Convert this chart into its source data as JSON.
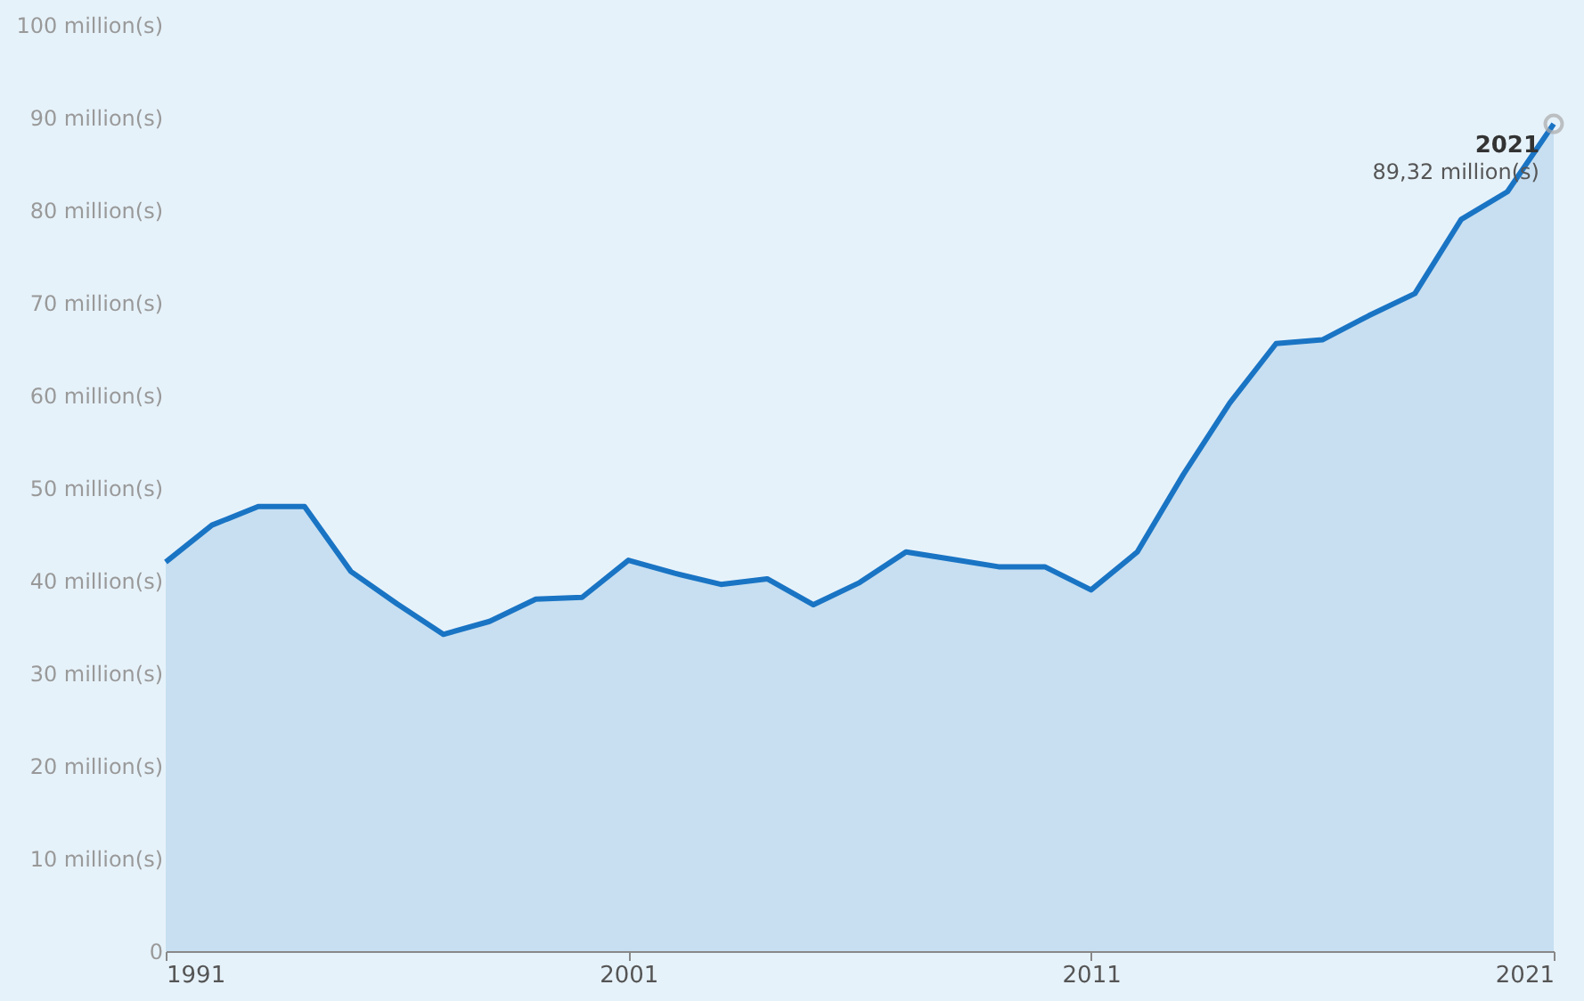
{
  "chart_data": {
    "type": "area",
    "x": [
      1991,
      1992,
      1993,
      1994,
      1995,
      1996,
      1997,
      1998,
      1999,
      2000,
      2001,
      2002,
      2003,
      2004,
      2005,
      2006,
      2007,
      2008,
      2009,
      2010,
      2011,
      2012,
      2013,
      2014,
      2015,
      2016,
      2017,
      2018,
      2019,
      2020,
      2021
    ],
    "series": [
      {
        "color": "#1a74c4",
        "values": [
          42,
          46,
          48,
          48,
          41,
          37.5,
          34.2,
          35.6,
          38,
          38.2,
          42.2,
          40.8,
          39.6,
          40.2,
          37.4,
          39.8,
          43.1,
          42.3,
          41.5,
          41.5,
          39,
          43.1,
          51.5,
          59.2,
          65.6,
          66,
          68.6,
          71,
          79,
          82,
          89.32
        ]
      }
    ],
    "xlim": [
      1991,
      2021
    ],
    "xticks": [
      1991,
      2001,
      2011,
      2021
    ],
    "ylim": [
      0,
      100
    ],
    "yticks": [
      {
        "value": 0,
        "label": "0"
      },
      {
        "value": 10,
        "label": "10 million(s)"
      },
      {
        "value": 20,
        "label": "20 million(s)"
      },
      {
        "value": 30,
        "label": "30 million(s)"
      },
      {
        "value": 40,
        "label": "40 million(s)"
      },
      {
        "value": 50,
        "label": "50 million(s)"
      },
      {
        "value": 60,
        "label": "60 million(s)"
      },
      {
        "value": 70,
        "label": "70 million(s)"
      },
      {
        "value": 80,
        "label": "80 million(s)"
      },
      {
        "value": 90,
        "label": "90 million(s)"
      },
      {
        "value": 100,
        "label": "100 million(s)"
      }
    ],
    "annotations": [
      {
        "text": "2021",
        "x": 2021,
        "y": 89.32
      },
      {
        "text": "89,32 million(s)",
        "x": 2021,
        "y": 89.32
      }
    ],
    "grid": false,
    "marker": "none",
    "line_style": "solid"
  }
}
